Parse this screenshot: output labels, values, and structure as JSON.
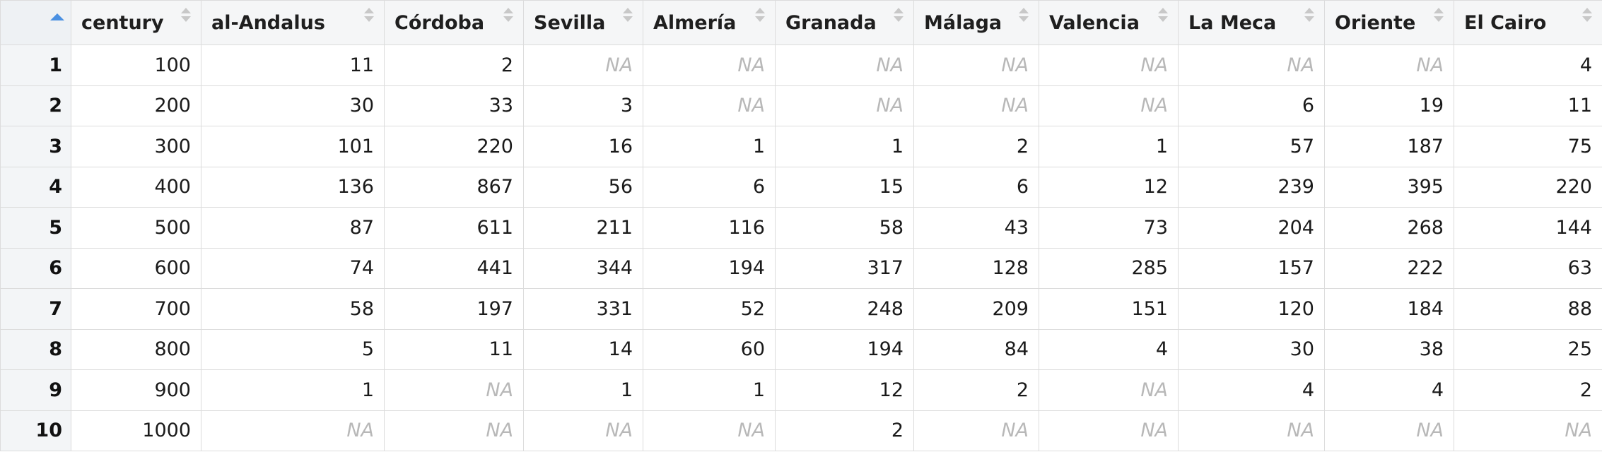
{
  "table": {
    "sort_indicator": "ascending",
    "columns": [
      {
        "key": "century",
        "label": "century"
      },
      {
        "key": "al_andalus",
        "label": "al-Andalus"
      },
      {
        "key": "cordoba",
        "label": "Córdoba"
      },
      {
        "key": "sevilla",
        "label": "Sevilla"
      },
      {
        "key": "almeria",
        "label": "Almería"
      },
      {
        "key": "granada",
        "label": "Granada"
      },
      {
        "key": "malaga",
        "label": "Málaga"
      },
      {
        "key": "valencia",
        "label": "Valencia"
      },
      {
        "key": "la_meca",
        "label": "La Meca"
      },
      {
        "key": "oriente",
        "label": "Oriente"
      },
      {
        "key": "el_cairo",
        "label": "El Cairo"
      }
    ],
    "rows": [
      {
        "num": "1",
        "cells": [
          "100",
          "11",
          "2",
          "NA",
          "NA",
          "NA",
          "NA",
          "NA",
          "NA",
          "NA",
          "4"
        ]
      },
      {
        "num": "2",
        "cells": [
          "200",
          "30",
          "33",
          "3",
          "NA",
          "NA",
          "NA",
          "NA",
          "6",
          "19",
          "11"
        ]
      },
      {
        "num": "3",
        "cells": [
          "300",
          "101",
          "220",
          "16",
          "1",
          "1",
          "2",
          "1",
          "57",
          "187",
          "75"
        ]
      },
      {
        "num": "4",
        "cells": [
          "400",
          "136",
          "867",
          "56",
          "6",
          "15",
          "6",
          "12",
          "239",
          "395",
          "220"
        ]
      },
      {
        "num": "5",
        "cells": [
          "500",
          "87",
          "611",
          "211",
          "116",
          "58",
          "43",
          "73",
          "204",
          "268",
          "144"
        ]
      },
      {
        "num": "6",
        "cells": [
          "600",
          "74",
          "441",
          "344",
          "194",
          "317",
          "128",
          "285",
          "157",
          "222",
          "63"
        ]
      },
      {
        "num": "7",
        "cells": [
          "700",
          "58",
          "197",
          "331",
          "52",
          "248",
          "209",
          "151",
          "120",
          "184",
          "88"
        ]
      },
      {
        "num": "8",
        "cells": [
          "800",
          "5",
          "11",
          "14",
          "60",
          "194",
          "84",
          "4",
          "30",
          "38",
          "25"
        ]
      },
      {
        "num": "9",
        "cells": [
          "900",
          "1",
          "NA",
          "1",
          "1",
          "12",
          "2",
          "NA",
          "4",
          "4",
          "2"
        ]
      },
      {
        "num": "10",
        "cells": [
          "1000",
          "NA",
          "NA",
          "NA",
          "NA",
          "2",
          "NA",
          "NA",
          "NA",
          "NA",
          "NA"
        ]
      }
    ]
  }
}
